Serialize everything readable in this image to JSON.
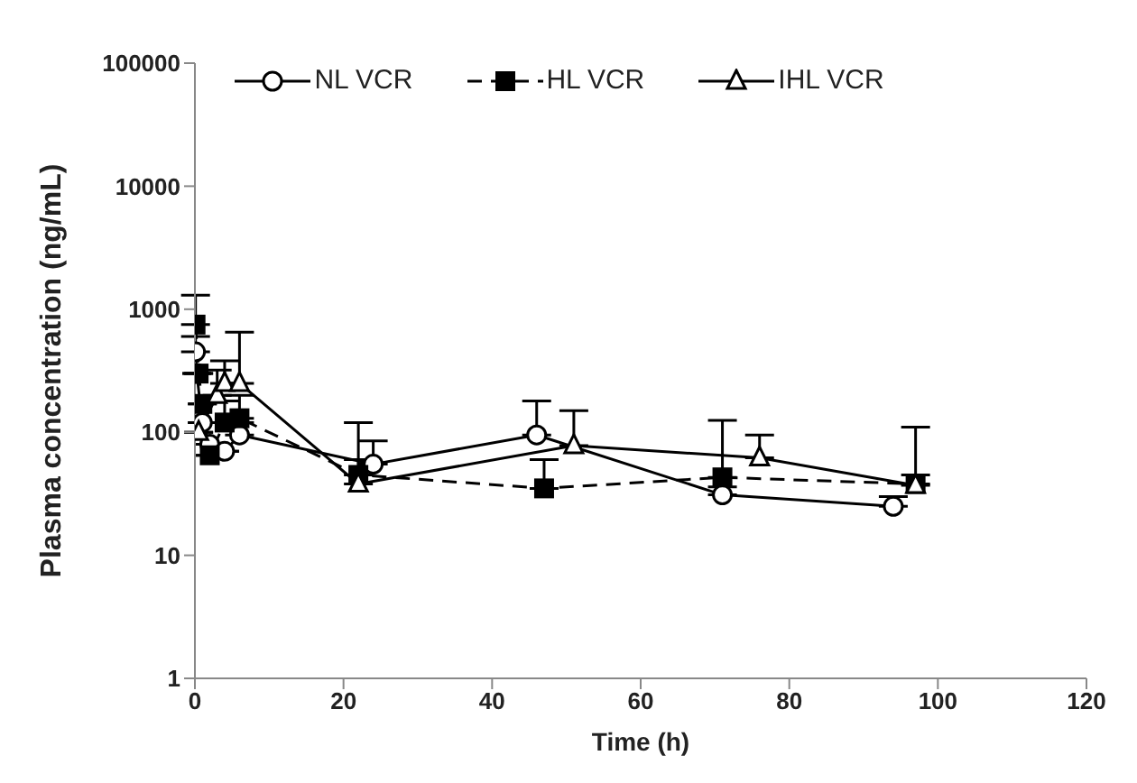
{
  "chart_data": {
    "type": "line",
    "xlabel": "Time (h)",
    "ylabel": "Plasma concentration (ng/mL)",
    "log": "y",
    "xlim": [
      0,
      120
    ],
    "xticks": [
      0,
      20,
      40,
      60,
      80,
      100,
      120
    ],
    "ylim": [
      1,
      100000
    ],
    "yticks": [
      1,
      10,
      100,
      1000,
      10000,
      100000
    ],
    "grid": false,
    "legend": "top",
    "series": [
      {
        "name": "NL VCR",
        "color": "#000000",
        "marker": "circle",
        "line_style": "solid",
        "x": [
          0.083,
          0.25,
          1,
          2,
          4,
          6,
          24,
          46,
          71,
          94
        ],
        "values": [
          450,
          300,
          120,
          80,
          70,
          95,
          55,
          95,
          31,
          25
        ],
        "errors": [
          [
            450,
            600
          ],
          null,
          null,
          null,
          null,
          [
            95,
            120
          ],
          [
            55,
            85
          ],
          [
            95,
            180
          ],
          [
            31,
            36
          ],
          [
            25,
            30
          ]
        ]
      },
      {
        "name": "HL VCR",
        "color": "#000000",
        "marker": "square",
        "line_style": "dashed",
        "x": [
          0.083,
          0.5,
          1,
          2,
          4,
          6,
          22,
          47,
          71,
          97
        ],
        "values": [
          750,
          300,
          170,
          65,
          120,
          130,
          45,
          35,
          43,
          38
        ],
        "errors": [
          [
            750,
            1300
          ],
          null,
          null,
          null,
          [
            120,
            180
          ],
          [
            130,
            200
          ],
          [
            45,
            120
          ],
          [
            35,
            60
          ],
          [
            43,
            125
          ],
          [
            38,
            110
          ]
        ]
      },
      {
        "name": "IHL VCR",
        "color": "#000000",
        "marker": "triangle",
        "line_style": "solid",
        "x": [
          0.5,
          3,
          4,
          6,
          22,
          51,
          76,
          97
        ],
        "values": [
          100,
          200,
          250,
          250,
          38,
          78,
          62,
          37
        ],
        "errors": [
          null,
          [
            200,
            320
          ],
          [
            250,
            380
          ],
          [
            250,
            650
          ],
          [
            38,
            60
          ],
          [
            78,
            150
          ],
          [
            62,
            95
          ],
          [
            37,
            45
          ]
        ]
      }
    ]
  }
}
